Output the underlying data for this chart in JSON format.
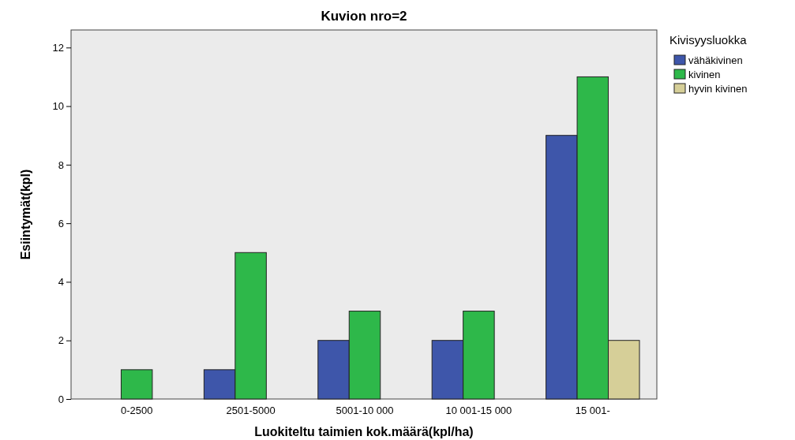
{
  "chart_data": {
    "type": "bar",
    "title": "Kuvion nro=2",
    "xlabel": "Luokiteltu taimien kok.määrä(kpl/ha)",
    "ylabel": "Esiintymät(kpl)",
    "legend_title": "Kivisyysluokka",
    "categories": [
      "0-2500",
      "2501-5000",
      "5001-10 000",
      "10 001-15 000",
      "15 001-"
    ],
    "series": [
      {
        "name": "vähäkivinen",
        "color": "#3e56aa",
        "values": [
          null,
          1,
          2,
          2,
          9
        ]
      },
      {
        "name": "kivinen",
        "color": "#2eb84a",
        "values": [
          1,
          5,
          3,
          3,
          11
        ]
      },
      {
        "name": "hyvin kivinen",
        "color": "#d6cf98",
        "values": [
          null,
          null,
          null,
          null,
          2
        ]
      }
    ],
    "ylim": [
      0,
      12.6
    ],
    "yticks": [
      0,
      2,
      4,
      6,
      8,
      10,
      12
    ],
    "grid": false,
    "legend": "top right"
  }
}
